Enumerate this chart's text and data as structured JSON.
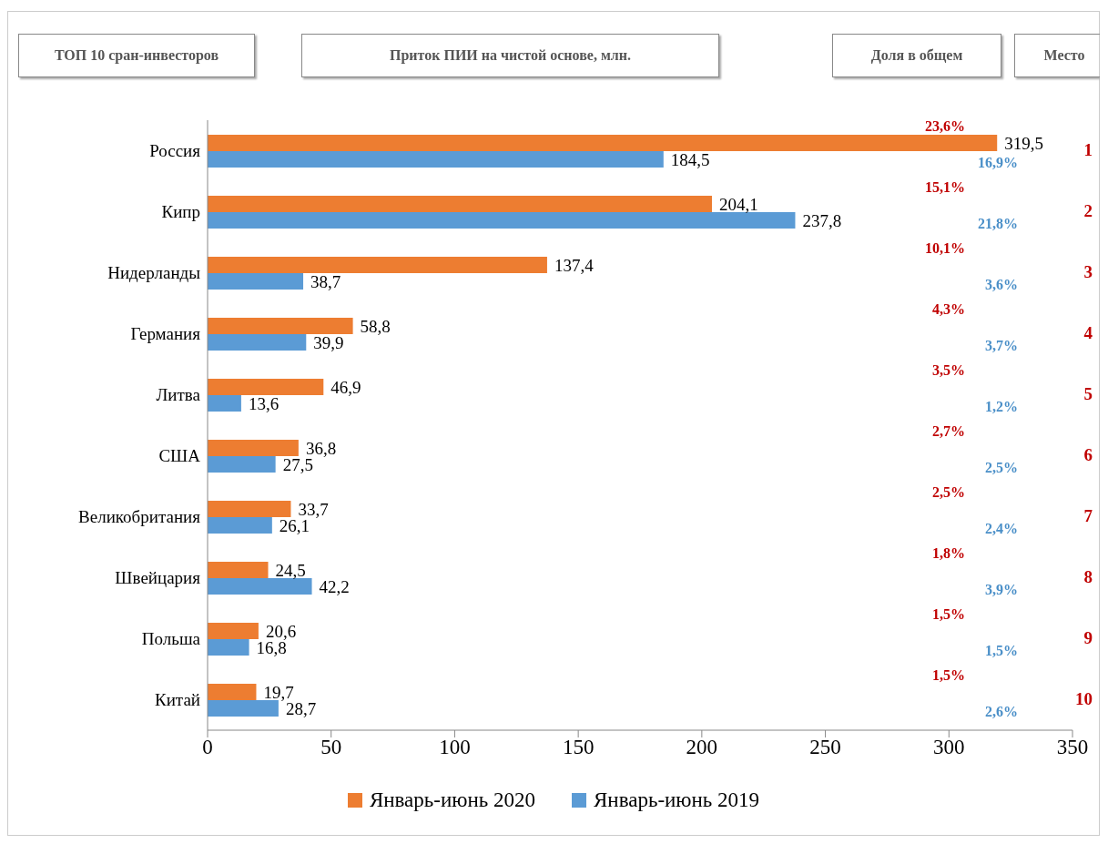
{
  "chart_data": {
    "type": "bar",
    "orientation": "horizontal",
    "categories": [
      "Россия",
      "Кипр",
      "Нидерланды",
      "Германия",
      "Литва",
      "США",
      "Великобритания",
      "Швейцария",
      "Польша",
      "Китай"
    ],
    "series": [
      {
        "name": "Январь-июнь  2020",
        "color": "#ed7d31",
        "values": [
          319.5,
          204.1,
          137.4,
          58.8,
          46.9,
          36.8,
          33.7,
          24.5,
          20.6,
          19.7
        ],
        "value_labels": [
          "319,5",
          "204,1",
          "137,4",
          "58,8",
          "46,9",
          "36,8",
          "33,7",
          "24,5",
          "20,6",
          "19,7"
        ]
      },
      {
        "name": "Январь-июнь  2019",
        "color": "#5b9bd5",
        "values": [
          184.5,
          237.8,
          38.7,
          39.9,
          13.6,
          27.5,
          26.1,
          42.2,
          16.8,
          28.7
        ],
        "value_labels": [
          "184,5",
          "237,8",
          "38,7",
          "39,9",
          "13,6",
          "27,5",
          "26,1",
          "42,2",
          "16,8",
          "28,7"
        ]
      }
    ],
    "xlim": [
      0,
      350
    ],
    "xticks": [
      0,
      50,
      100,
      150,
      200,
      250,
      300,
      350
    ],
    "legend": "bottom",
    "annotations": [
      "ТОП 10 сран-инвесторов",
      "Приток ПИИ на чистой основе,  млн.",
      "Доля в общем",
      "Место",
      "23,6%",
      "16,9%",
      "1",
      "15,1%",
      "21,8%",
      "2",
      "10,1%",
      "3,6%",
      "3",
      "4,3%",
      "3,7%",
      "4",
      "3,5%",
      "1,2%",
      "5",
      "2,7%",
      "2,5%",
      "6",
      "2,5%",
      "2,4%",
      "7",
      "1,8%",
      "3,9%",
      "8",
      "1,5%",
      "1,5%",
      "9",
      "1,5%",
      "2,6%",
      "10"
    ]
  }
}
